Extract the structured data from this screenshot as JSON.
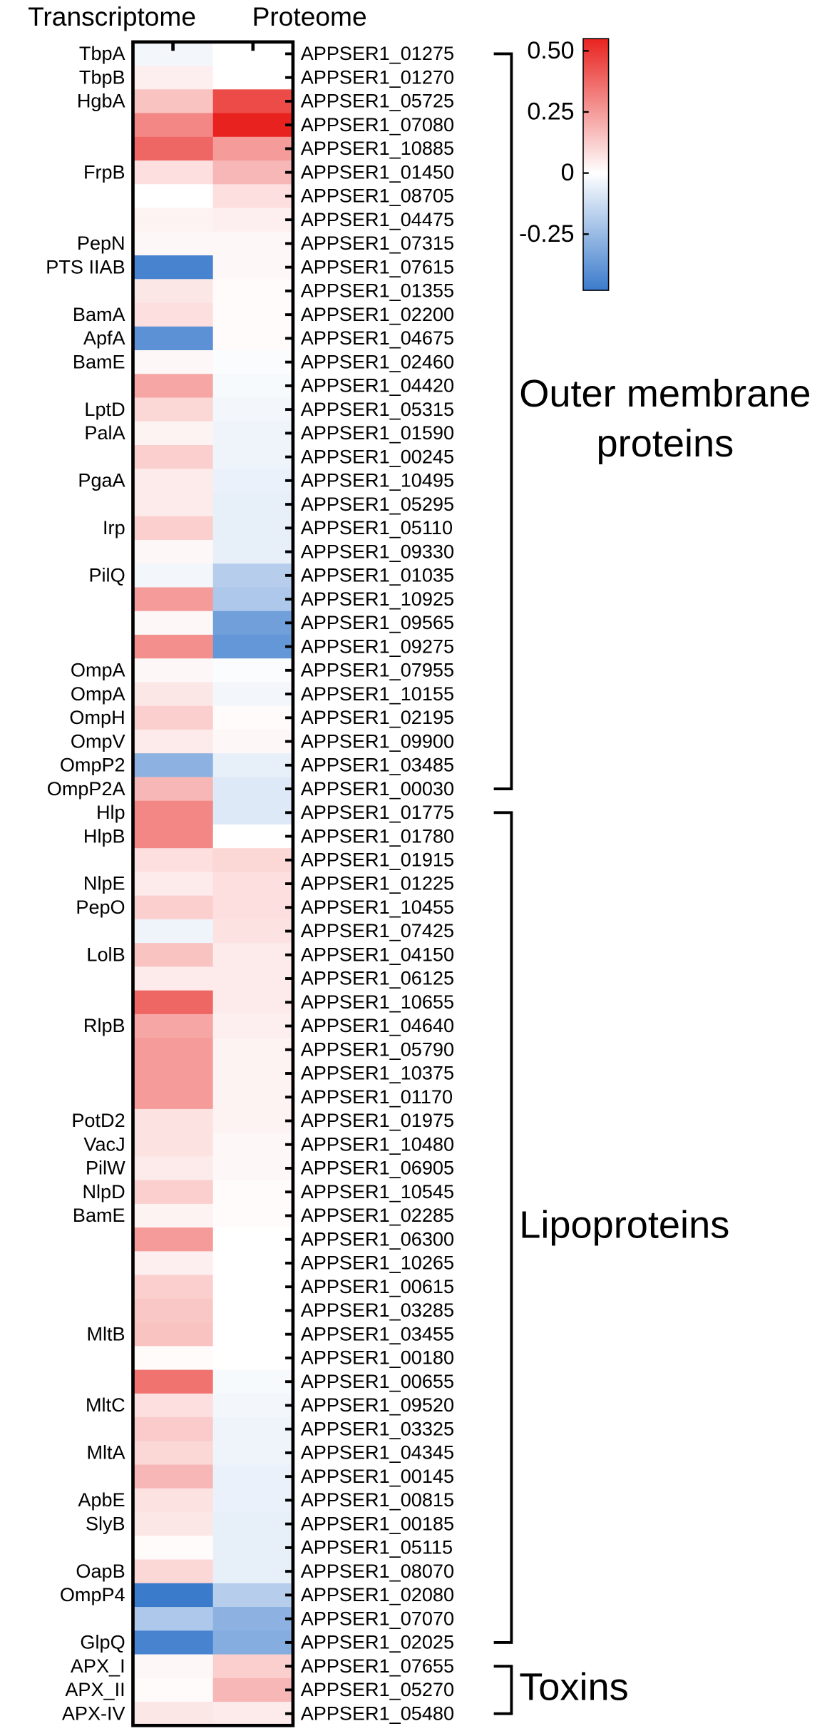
{
  "chart_data": {
    "type": "heatmap",
    "series": [
      {
        "name": "Transcriptome",
        "values": [
          -0.03,
          0.04,
          0.15,
          0.3,
          0.38,
          0.08,
          0,
          0.03,
          0.02,
          -0.45,
          0.06,
          0.08,
          -0.4,
          0.02,
          0.22,
          0.1,
          0.03,
          0.12,
          0.05,
          0.05,
          0.12,
          0.02,
          -0.03,
          0.25,
          0.02,
          0.28,
          0.02,
          0.06,
          0.12,
          0.05,
          -0.28,
          0.18,
          0.3,
          0.3,
          0.08,
          0.05,
          0.12,
          -0.04,
          0.15,
          0.05,
          0.38,
          0.22,
          0.25,
          0.25,
          0.25,
          0.07,
          0.07,
          0.05,
          0.12,
          0.03,
          0.25,
          0.04,
          0.12,
          0.14,
          0.15,
          0.01,
          0.35,
          0.08,
          0.13,
          0.1,
          0.18,
          0.07,
          0.06,
          0.01,
          0.1,
          -0.5,
          -0.2,
          -0.45,
          0.02,
          0.01,
          0.06
        ]
      },
      {
        "name": "Proteome",
        "values": [
          0,
          0,
          0.45,
          0.58,
          0.25,
          0.18,
          0.08,
          0.04,
          0.02,
          0.02,
          0.01,
          0.01,
          0.01,
          -0.01,
          -0.02,
          -0.03,
          -0.04,
          -0.04,
          -0.05,
          -0.06,
          -0.06,
          -0.06,
          -0.18,
          -0.2,
          -0.35,
          -0.38,
          -0.01,
          -0.03,
          0.01,
          0.02,
          -0.06,
          -0.08,
          -0.08,
          0,
          0.1,
          0.08,
          0.08,
          0.07,
          0.05,
          0.05,
          0.05,
          0.04,
          0.03,
          0.03,
          0.03,
          0.03,
          0.02,
          0.02,
          0.01,
          0.01,
          0,
          0,
          0,
          0,
          0,
          0,
          -0.02,
          -0.03,
          -0.04,
          -0.04,
          -0.05,
          -0.05,
          -0.06,
          -0.06,
          -0.06,
          -0.18,
          -0.28,
          -0.3,
          0.12,
          0.18,
          0.05
        ]
      }
    ],
    "rows": [
      "APPSER1_01275",
      "APPSER1_01270",
      "APPSER1_05725",
      "APPSER1_07080",
      "APPSER1_10885",
      "APPSER1_01450",
      "APPSER1_08705",
      "APPSER1_04475",
      "APPSER1_07315",
      "APPSER1_07615",
      "APPSER1_01355",
      "APPSER1_02200",
      "APPSER1_04675",
      "APPSER1_02460",
      "APPSER1_04420",
      "APPSER1_05315",
      "APPSER1_01590",
      "APPSER1_00245",
      "APPSER1_10495",
      "APPSER1_05295",
      "APPSER1_05110",
      "APPSER1_09330",
      "APPSER1_01035",
      "APPSER1_10925",
      "APPSER1_09565",
      "APPSER1_09275",
      "APPSER1_07955",
      "APPSER1_10155",
      "APPSER1_02195",
      "APPSER1_09900",
      "APPSER1_03485",
      "APPSER1_00030",
      "APPSER1_01775",
      "APPSER1_01780",
      "APPSER1_01915",
      "APPSER1_01225",
      "APPSER1_10455",
      "APPSER1_07425",
      "APPSER1_04150",
      "APPSER1_06125",
      "APPSER1_10655",
      "APPSER1_04640",
      "APPSER1_05790",
      "APPSER1_10375",
      "APPSER1_01170",
      "APPSER1_01975",
      "APPSER1_10480",
      "APPSER1_06905",
      "APPSER1_10545",
      "APPSER1_02285",
      "APPSER1_06300",
      "APPSER1_10265",
      "APPSER1_00615",
      "APPSER1_03285",
      "APPSER1_03455",
      "APPSER1_00180",
      "APPSER1_00655",
      "APPSER1_09520",
      "APPSER1_03325",
      "APPSER1_04345",
      "APPSER1_00145",
      "APPSER1_00815",
      "APPSER1_00185",
      "APPSER1_05115",
      "APPSER1_08070",
      "APPSER1_02080",
      "APPSER1_07070",
      "APPSER1_02025",
      "APPSER1_07655",
      "APPSER1_05270",
      "APPSER1_05480"
    ],
    "row_labels": [
      "TbpA",
      "TbpB",
      "HgbA",
      null,
      null,
      "FrpB",
      null,
      null,
      "PepN",
      "PTS IIAB",
      null,
      "BamA",
      "ApfA",
      "BamE",
      null,
      "LptD",
      "PalA",
      null,
      "PgaA",
      null,
      "Irp",
      null,
      "PilQ",
      null,
      null,
      null,
      "OmpA",
      "OmpA",
      "OmpH",
      "OmpV",
      "OmpP2",
      "OmpP2A",
      "Hlp",
      "HlpB",
      null,
      "NlpE",
      "PepO",
      null,
      "LolB",
      null,
      null,
      "RlpB",
      null,
      null,
      null,
      "PotD2",
      "VacJ",
      "PilW",
      "NlpD",
      "BamE",
      null,
      null,
      null,
      null,
      "MltB",
      null,
      null,
      "MltC",
      null,
      "MltA",
      null,
      "ApbE",
      "SlyB",
      null,
      "OapB",
      "OmpP4",
      null,
      "GlpQ",
      "APX_I",
      "APX_II",
      "APX-IV"
    ],
    "groups": [
      {
        "label": [
          "Outer membrane",
          "proteins"
        ],
        "rows": [
          0,
          31
        ]
      },
      {
        "label": [
          "Lipoproteins"
        ],
        "rows": [
          32,
          67
        ]
      },
      {
        "label": [
          "Toxins"
        ],
        "rows": [
          68,
          70
        ]
      }
    ],
    "colors": [
      "#3b7bcc",
      "#ffffff",
      "#e8231f"
    ],
    "zlim": [
      -0.48,
      0.55
    ],
    "zticks": [
      {
        "value": 0.5,
        "label": "0.50"
      },
      0.25,
      0,
      -0.25
    ]
  }
}
